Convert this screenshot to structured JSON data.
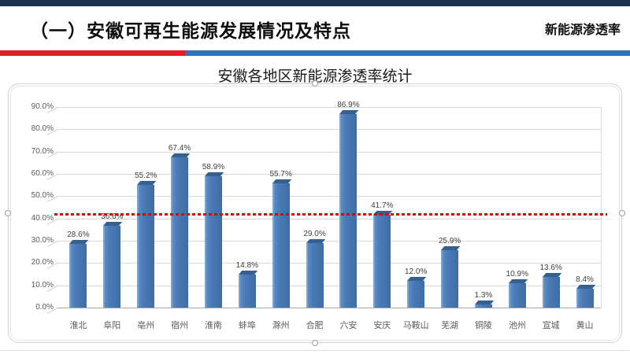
{
  "header": {
    "title": "（一）安徽可再生能源发展情况及特点",
    "corner_label": "新能源渗透率"
  },
  "colors": {
    "top_strip": "#1e3150",
    "divider_red": "#df2027",
    "divider_blue": "#2e74b5",
    "bar": "#4a7bb7",
    "bar_shadow": "#35608f",
    "reference_line": "#e00000",
    "gridline": "#d9d9d9"
  },
  "chart_data": {
    "type": "bar",
    "title": "安徽各地区新能源渗透率统计",
    "categories": [
      "淮北",
      "阜阳",
      "亳州",
      "宿州",
      "淮南",
      "蚌埠",
      "滁州",
      "合肥",
      "六安",
      "安庆",
      "马鞍山",
      "芜湖",
      "铜陵",
      "池州",
      "宣城",
      "黄山"
    ],
    "values": [
      28.6,
      36.6,
      55.2,
      67.4,
      58.9,
      14.8,
      55.7,
      29.0,
      86.9,
      41.7,
      12.0,
      25.9,
      1.3,
      10.9,
      13.6,
      8.4
    ],
    "value_labels": [
      "28.6%",
      "36.6%",
      "55.2%",
      "67.4%",
      "58.9%",
      "14.8%",
      "55.7%",
      "29.0%",
      "86.9%",
      "41.7%",
      "12.0%",
      "25.9%",
      "1.3%",
      "10.9%",
      "13.6%",
      "8.4%"
    ],
    "ytick_labels": [
      "0.0%",
      "10.0%",
      "20.0%",
      "30.0%",
      "40.0%",
      "50.0%",
      "60.0%",
      "70.0%",
      "80.0%",
      "90.0%"
    ],
    "ylim": [
      0,
      90
    ],
    "grid": true,
    "legend": "none",
    "reference_line_value": 42
  }
}
